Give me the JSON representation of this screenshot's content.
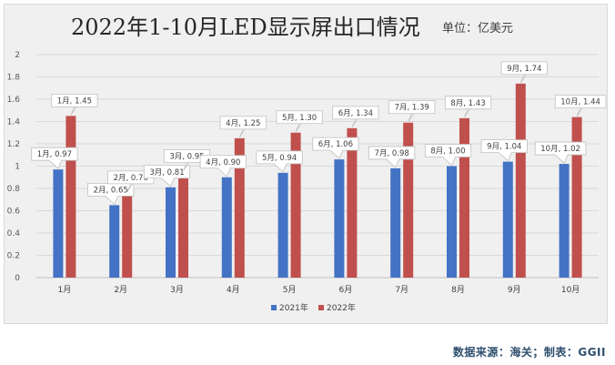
{
  "chart_data": {
    "type": "bar",
    "title": "2022年1-10月LED显示屏出口情况",
    "unit_label": "单位：亿美元",
    "categories": [
      "1月",
      "2月",
      "3月",
      "4月",
      "5月",
      "6月",
      "7月",
      "8月",
      "9月",
      "10月"
    ],
    "series": [
      {
        "name": "2021年",
        "color": "#4472c4",
        "values": [
          0.97,
          0.65,
          0.81,
          0.9,
          0.94,
          1.06,
          0.98,
          1.0,
          1.04,
          1.02
        ],
        "labels": [
          "1月, 0.97",
          "2月, 0.65",
          "3月, 0.81",
          "4月, 0.90",
          "5月, 0.94",
          "6月, 1.06",
          "7月, 0.98",
          "8月, 1.00",
          "9月, 1.04",
          "10月, 1.02"
        ]
      },
      {
        "name": "2022年",
        "color": "#c0504d",
        "values": [
          1.45,
          0.76,
          0.95,
          1.25,
          1.3,
          1.34,
          1.39,
          1.43,
          1.74,
          1.44
        ],
        "labels": [
          "1月, 1.45",
          "2月, 0.76",
          "3月, 0.95",
          "4月, 1.25",
          "5月, 1.30",
          "6月, 1.34",
          "7月, 1.39",
          "8月, 1.43",
          "9月, 1.74",
          "10月, 1.44"
        ]
      }
    ],
    "yticks": [
      "0",
      "0.2",
      "0.4",
      "0.6",
      "0.8",
      "1",
      "1.2",
      "1.4",
      "1.6",
      "1.8",
      "2"
    ],
    "ylim": [
      0,
      2
    ],
    "grid": true,
    "legend_position": "bottom"
  },
  "source_note": "数据来源：海关；制表：GGII"
}
